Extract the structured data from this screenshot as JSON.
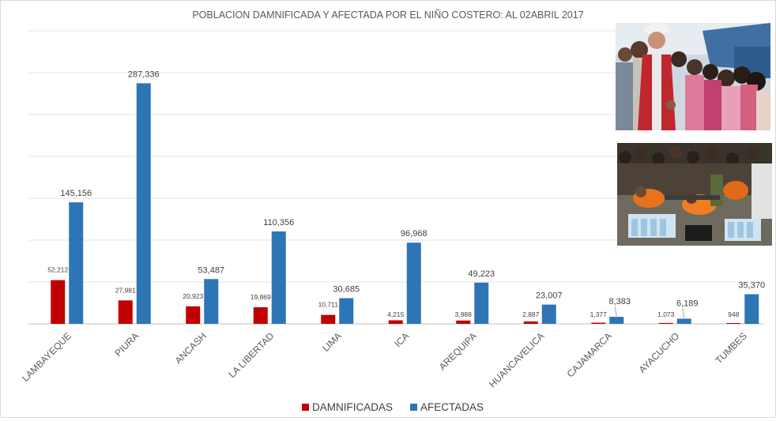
{
  "chart_data": {
    "type": "bar",
    "title": "POBLACION DAMNIFICADA Y AFECTADA POR EL NIÑO COSTERO: AL 02ABRIL 2017",
    "categories": [
      "LAMBAYEQUE",
      "PIURA",
      "ANCASH",
      "LA LIBERTAD",
      "LIMA",
      "ICA",
      "AREQUIPA",
      "HUANCAVELICA",
      "CAJAMARCA",
      "AYACUCHO",
      "TUMBES"
    ],
    "series": [
      {
        "name": "DAMNIFICADAS",
        "color": "#c00000",
        "values": [
          52212,
          27981,
          20923,
          19869,
          10711,
          4215,
          3988,
          2887,
          1377,
          1073,
          948
        ],
        "labels": [
          "52,212",
          "27,981",
          "20,923",
          "19,869",
          "10,711",
          "4,215",
          "3,988",
          "2,887",
          "1,377",
          "1,073",
          "948"
        ]
      },
      {
        "name": "AFECTADAS",
        "color": "#2e75b6",
        "values": [
          145156,
          287336,
          53487,
          110356,
          30685,
          96968,
          49223,
          23007,
          8383,
          6189,
          35370
        ],
        "labels": [
          "145,156",
          "287,336",
          "53,487",
          "110,356",
          "30,685",
          "96,968",
          "49,223",
          "23,007",
          "8,383",
          "6,189",
          "35,370"
        ]
      }
    ],
    "ylim": [
      0,
      350000
    ],
    "grid": true,
    "legend_position": "bottom",
    "xlabel": "",
    "ylabel": ""
  },
  "photos": [
    "crowd-with-official-photo",
    "relief-workers-water-bottles-photo"
  ]
}
